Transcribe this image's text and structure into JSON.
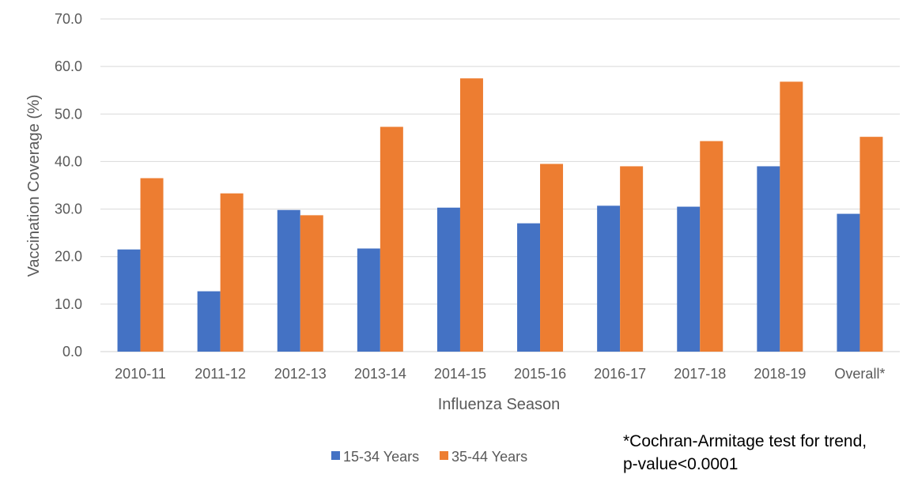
{
  "chart_data": {
    "type": "bar",
    "categories": [
      "2010-11",
      "2011-12",
      "2012-13",
      "2013-14",
      "2014-15",
      "2015-16",
      "2016-17",
      "2017-18",
      "2018-19",
      "Overall*"
    ],
    "series": [
      {
        "name": "15-34 Years",
        "color": "#4472c4",
        "values": [
          21.5,
          12.7,
          29.8,
          21.7,
          30.3,
          27.0,
          30.7,
          30.5,
          39.0,
          29.0
        ]
      },
      {
        "name": "35-44 Years",
        "color": "#ed7d31",
        "values": [
          36.5,
          33.3,
          28.7,
          47.3,
          57.5,
          39.5,
          39.0,
          44.3,
          56.8,
          45.2
        ]
      }
    ],
    "xlabel": "Influenza Season",
    "ylabel": "Vaccination Coverage (%)",
    "ylim": [
      0,
      70
    ],
    "yticks": [
      "0.0",
      "10.0",
      "20.0",
      "30.0",
      "40.0",
      "50.0",
      "60.0",
      "70.0"
    ],
    "grid": true,
    "legend_position": "bottom"
  },
  "note": {
    "line1": "*Cochran-Armitage test for trend,",
    "line2": "p-value<0.0001"
  }
}
